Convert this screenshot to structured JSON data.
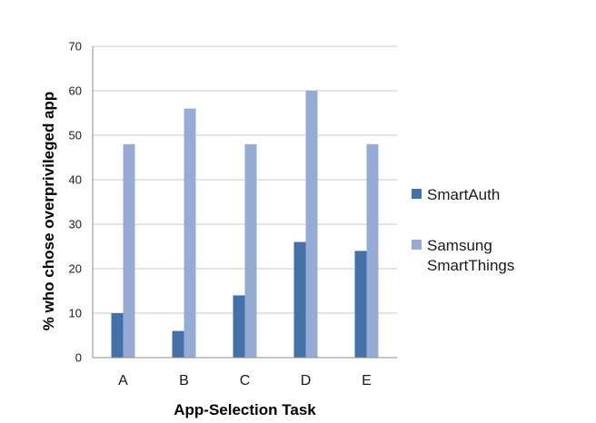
{
  "chart_data": {
    "type": "bar",
    "categories": [
      "A",
      "B",
      "C",
      "D",
      "E"
    ],
    "series": [
      {
        "name": "SmartAuth",
        "values": [
          10,
          6,
          14,
          26,
          24
        ],
        "color": "#4471a8"
      },
      {
        "name": "Samsung SmartThings",
        "name_lines": [
          "Samsung",
          "SmartThings"
        ],
        "values": [
          48,
          56,
          48,
          60,
          48
        ],
        "color": "#96acd4"
      }
    ],
    "xlabel": "App-Selection Task",
    "ylabel": "% who chose overprivileged app",
    "ylim": [
      0,
      70
    ],
    "yticks": [
      0,
      10,
      20,
      30,
      40,
      50,
      60,
      70
    ],
    "grid": true,
    "legend_position": "right"
  }
}
